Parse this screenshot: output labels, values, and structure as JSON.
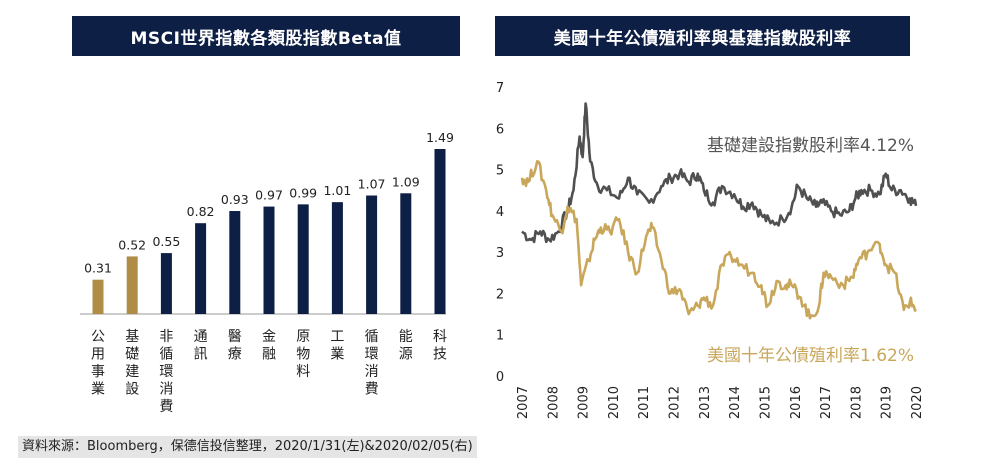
{
  "left_chart_title": "MSCI世界指數各類股指數Beta值",
  "right_chart_title": "美國十年公債殖利率與基建指數股利率",
  "source_note": "資料來源：Bloomberg，保德信投信整理，2020/1/31(左)&2020/02/05(右)",
  "colors": {
    "navy": "#0d1f44",
    "gold": "#b08d46",
    "gold_line": "#c9a75a",
    "gray_line": "#505050"
  },
  "chart_data": [
    {
      "type": "bar",
      "title": "MSCI世界指數各類股指數Beta值",
      "categories": [
        "公用事業",
        "基礎建設",
        "非循環消費",
        "通訊",
        "醫療",
        "金融",
        "原物料",
        "工業",
        "循環消費",
        "能源",
        "科技"
      ],
      "values": [
        0.31,
        0.52,
        0.55,
        0.82,
        0.93,
        0.97,
        0.99,
        1.01,
        1.07,
        1.09,
        1.49
      ],
      "value_labels": [
        "0.31",
        "0.52",
        "0.55",
        "0.82",
        "0.93",
        "0.97",
        "0.99",
        "1.01",
        "1.07",
        "1.09",
        "1.49"
      ],
      "bar_colors": [
        "#b08d46",
        "#b08d46",
        "#0d1f44",
        "#0d1f44",
        "#0d1f44",
        "#0d1f44",
        "#0d1f44",
        "#0d1f44",
        "#0d1f44",
        "#0d1f44",
        "#0d1f44"
      ],
      "ylim": [
        0,
        1.6
      ]
    },
    {
      "type": "line",
      "title": "美國十年公債殖利率與基建指數股利率",
      "ylim": [
        0,
        7
      ],
      "y_ticks": [
        "0",
        "1",
        "2",
        "3",
        "4",
        "5",
        "6",
        "7"
      ],
      "xlim": [
        2007,
        2020
      ],
      "x_ticks": [
        "2007",
        "2008",
        "2009",
        "2010",
        "2011",
        "2012",
        "2013",
        "2014",
        "2015",
        "2016",
        "2017",
        "2018",
        "2019",
        "2020"
      ],
      "grid": false,
      "series": [
        {
          "name": "基礎建設指數股利率4.12%",
          "color": "#505050",
          "points": [
            [
              2007.0,
              3.5
            ],
            [
              2007.3,
              3.3
            ],
            [
              2007.6,
              3.5
            ],
            [
              2007.9,
              3.3
            ],
            [
              2008.2,
              3.5
            ],
            [
              2008.5,
              4.0
            ],
            [
              2008.7,
              4.5
            ],
            [
              2008.9,
              5.8
            ],
            [
              2009.0,
              5.3
            ],
            [
              2009.1,
              6.6
            ],
            [
              2009.25,
              5.2
            ],
            [
              2009.5,
              4.6
            ],
            [
              2009.8,
              4.5
            ],
            [
              2010.2,
              4.3
            ],
            [
              2010.5,
              4.8
            ],
            [
              2010.8,
              4.4
            ],
            [
              2011.2,
              4.2
            ],
            [
              2011.6,
              4.6
            ],
            [
              2011.9,
              4.8
            ],
            [
              2012.2,
              4.9
            ],
            [
              2012.5,
              4.7
            ],
            [
              2012.8,
              4.9
            ],
            [
              2013.0,
              4.5
            ],
            [
              2013.3,
              4.2
            ],
            [
              2013.6,
              4.6
            ],
            [
              2014.0,
              4.4
            ],
            [
              2014.3,
              4.1
            ],
            [
              2014.6,
              4.2
            ],
            [
              2014.9,
              3.9
            ],
            [
              2015.2,
              3.7
            ],
            [
              2015.6,
              3.8
            ],
            [
              2015.9,
              4.1
            ],
            [
              2016.1,
              4.6
            ],
            [
              2016.4,
              4.3
            ],
            [
              2016.7,
              4.1
            ],
            [
              2016.9,
              4.2
            ],
            [
              2017.2,
              4.0
            ],
            [
              2017.5,
              3.9
            ],
            [
              2017.8,
              4.0
            ],
            [
              2018.0,
              4.3
            ],
            [
              2018.2,
              4.5
            ],
            [
              2018.5,
              4.5
            ],
            [
              2018.8,
              4.4
            ],
            [
              2019.0,
              4.9
            ],
            [
              2019.2,
              4.5
            ],
            [
              2019.5,
              4.5
            ],
            [
              2019.8,
              4.3
            ],
            [
              2020.0,
              4.12
            ]
          ]
        },
        {
          "name": "美國十年公債殖利率1.62%",
          "color": "#c9a75a",
          "points": [
            [
              2007.0,
              4.8
            ],
            [
              2007.2,
              4.7
            ],
            [
              2007.5,
              5.2
            ],
            [
              2007.8,
              4.5
            ],
            [
              2008.0,
              3.9
            ],
            [
              2008.3,
              3.5
            ],
            [
              2008.5,
              4.1
            ],
            [
              2008.8,
              3.8
            ],
            [
              2008.95,
              2.2
            ],
            [
              2009.2,
              2.8
            ],
            [
              2009.4,
              3.3
            ],
            [
              2009.6,
              3.6
            ],
            [
              2009.9,
              3.5
            ],
            [
              2010.2,
              3.8
            ],
            [
              2010.5,
              3.0
            ],
            [
              2010.8,
              2.5
            ],
            [
              2011.1,
              3.4
            ],
            [
              2011.3,
              3.6
            ],
            [
              2011.6,
              2.8
            ],
            [
              2011.9,
              2.0
            ],
            [
              2012.2,
              2.1
            ],
            [
              2012.5,
              1.5
            ],
            [
              2012.8,
              1.7
            ],
            [
              2013.0,
              1.9
            ],
            [
              2013.3,
              1.7
            ],
            [
              2013.6,
              2.7
            ],
            [
              2013.9,
              2.9
            ],
            [
              2014.2,
              2.7
            ],
            [
              2014.6,
              2.5
            ],
            [
              2014.9,
              2.2
            ],
            [
              2015.1,
              1.7
            ],
            [
              2015.4,
              2.3
            ],
            [
              2015.7,
              2.2
            ],
            [
              2015.9,
              2.2
            ],
            [
              2016.2,
              1.9
            ],
            [
              2016.5,
              1.4
            ],
            [
              2016.8,
              1.7
            ],
            [
              2016.95,
              2.5
            ],
            [
              2017.2,
              2.4
            ],
            [
              2017.6,
              2.2
            ],
            [
              2017.9,
              2.4
            ],
            [
              2018.1,
              2.8
            ],
            [
              2018.4,
              3.0
            ],
            [
              2018.8,
              3.2
            ],
            [
              2019.0,
              2.7
            ],
            [
              2019.3,
              2.5
            ],
            [
              2019.6,
              1.6
            ],
            [
              2019.8,
              1.8
            ],
            [
              2020.0,
              1.62
            ]
          ]
        }
      ]
    }
  ]
}
